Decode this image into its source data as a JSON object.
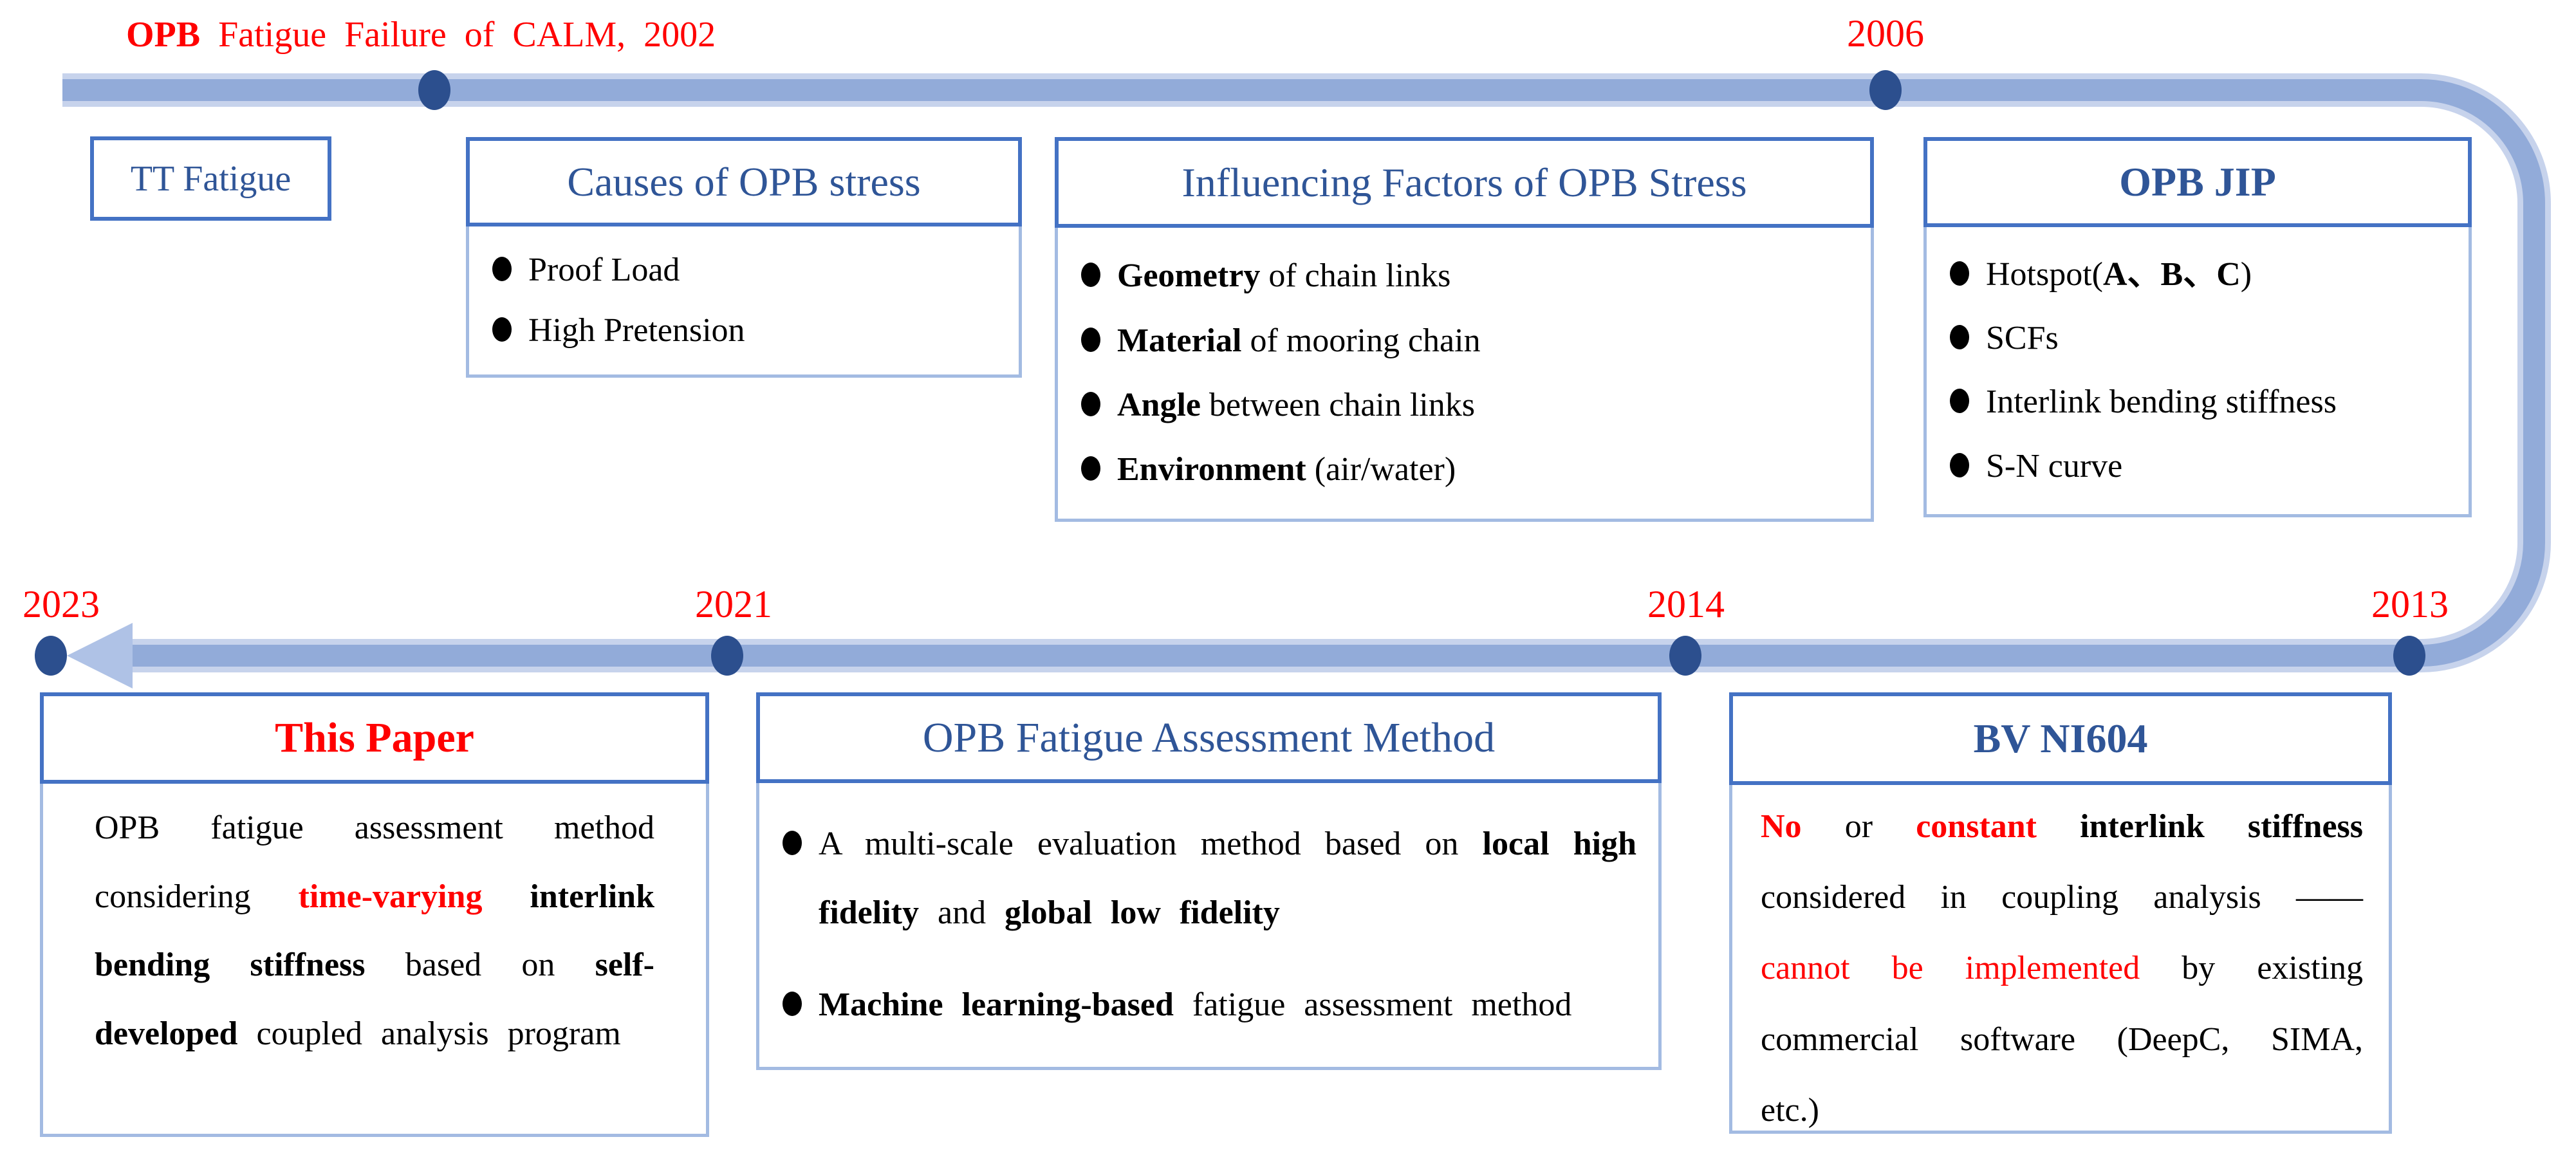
{
  "colors": {
    "accent_border": "#4472C4",
    "light_border": "#A3BBE2",
    "band_main": "#92ABD9",
    "band_highlight": "#C7D3EC",
    "arrowhead": "#AFC2E6",
    "dot_navy": "#2C4F8E",
    "title_blue": "#2F5597",
    "highlight_red": "#FF0000",
    "body_text": "#000000"
  },
  "timeline": {
    "start_event": [
      {
        "t": "OPB ",
        "cls": "bold"
      },
      {
        "t": "Fatigue Failure of CALM, 2002",
        "cls": ""
      }
    ],
    "years": {
      "y2006": "2006",
      "y2013": "2013",
      "y2014": "2014",
      "y2021": "2021",
      "y2023": "2023"
    },
    "direction_note": "top bar runs 2002-2006 left to right, curves down at right, bottom bar runs 2013-2023 right to left ending in arrowhead"
  },
  "panels": {
    "tt_fatigue": {
      "title": "TT Fatigue"
    },
    "causes": {
      "title": "Causes of OPB stress",
      "bullets": [
        [
          {
            "t": "Proof Load",
            "cls": ""
          }
        ],
        [
          {
            "t": "High Pretension",
            "cls": ""
          }
        ]
      ]
    },
    "influencing": {
      "title": "Influencing Factors of OPB Stress",
      "bullets": [
        [
          {
            "t": "Geometry",
            "cls": "bold"
          },
          {
            "t": " of chain links",
            "cls": ""
          }
        ],
        [
          {
            "t": "Material",
            "cls": "bold"
          },
          {
            "t": " of mooring chain",
            "cls": ""
          }
        ],
        [
          {
            "t": "Angle",
            "cls": "bold"
          },
          {
            "t": " between chain links",
            "cls": ""
          }
        ],
        [
          {
            "t": "Environment",
            "cls": "bold"
          },
          {
            "t": " (air/water)",
            "cls": ""
          }
        ]
      ]
    },
    "opb_jip": {
      "title": "OPB JIP",
      "bullets": [
        [
          {
            "t": "Hotspot(",
            "cls": ""
          },
          {
            "t": "A、B、C",
            "cls": "bold"
          },
          {
            "t": ")",
            "cls": ""
          }
        ],
        [
          {
            "t": "SCFs",
            "cls": ""
          }
        ],
        [
          {
            "t": "Interlink bending stiffness",
            "cls": ""
          }
        ],
        [
          {
            "t": "S-N curve",
            "cls": ""
          }
        ]
      ]
    },
    "this_paper": {
      "title": "This Paper",
      "body": [
        {
          "t": "OPB fatigue assessment method considering ",
          "cls": ""
        },
        {
          "t": "time-varying",
          "cls": "red bold"
        },
        {
          "t": " ",
          "cls": ""
        },
        {
          "t": "interlink bending stiffness",
          "cls": "bold"
        },
        {
          "t": " based on ",
          "cls": ""
        },
        {
          "t": "self-developed",
          "cls": "bold"
        },
        {
          "t": " coupled analysis program",
          "cls": ""
        }
      ]
    },
    "assessment": {
      "title": "OPB Fatigue Assessment Method",
      "bullets": [
        [
          {
            "t": "A multi-scale evaluation method based on ",
            "cls": ""
          },
          {
            "t": "local high fidelity",
            "cls": "bold"
          },
          {
            "t": " and ",
            "cls": ""
          },
          {
            "t": "global low fidelity",
            "cls": "bold"
          }
        ],
        [
          {
            "t": "Machine learning-based",
            "cls": "bold"
          },
          {
            "t": " fatigue assessment method",
            "cls": ""
          }
        ]
      ]
    },
    "bv_ni604": {
      "title": "BV NI604",
      "body": [
        {
          "t": "No",
          "cls": "red bold"
        },
        {
          "t": " or ",
          "cls": ""
        },
        {
          "t": "constant",
          "cls": "red bold"
        },
        {
          "t": " ",
          "cls": ""
        },
        {
          "t": "interlink stiffness",
          "cls": "bold"
        },
        {
          "t": " considered in coupling analysis ",
          "cls": ""
        },
        {
          "t": "——",
          "cls": ""
        },
        {
          "t": "cannot be implemented",
          "cls": "red"
        },
        {
          "t": " by existing commercial software (DeepC, SIMA, etc.)",
          "cls": ""
        }
      ]
    }
  }
}
